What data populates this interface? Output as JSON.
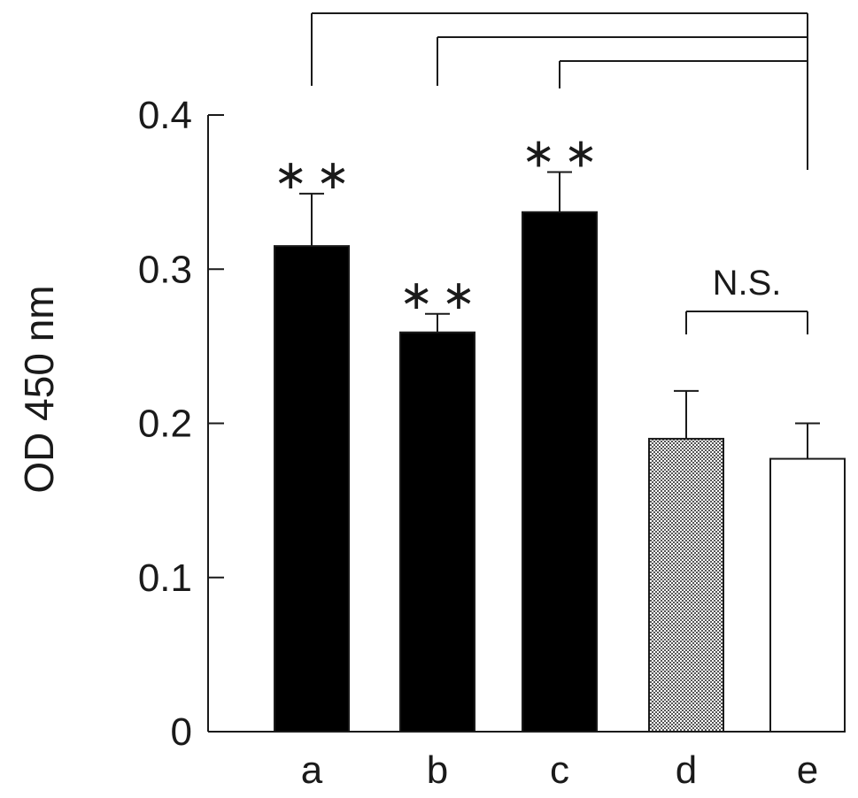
{
  "chart_data": {
    "type": "bar",
    "categories": [
      "a",
      "b",
      "c",
      "d",
      "e"
    ],
    "values": [
      0.315,
      0.259,
      0.337,
      0.19,
      0.177
    ],
    "errors": [
      0.034,
      0.012,
      0.026,
      0.031,
      0.023
    ],
    "bar_colors": [
      "#000000",
      "#000000",
      "#000000",
      "#cccccc",
      "#ffffff"
    ],
    "bar_patterns": [
      "solid",
      "solid",
      "solid",
      "checkered",
      "open"
    ],
    "title": "",
    "xlabel": "",
    "ylabel": "OD 450 nm",
    "ylim": [
      0,
      0.4
    ],
    "yticks": [
      0,
      0.1,
      0.2,
      0.3,
      0.4
    ],
    "ytick_labels": [
      "0",
      "0.1",
      "0.2",
      "0.3",
      "0.4"
    ],
    "grid": false,
    "significance_marks": [
      "**",
      "**",
      "**",
      "",
      ""
    ],
    "comparisons": [
      {
        "from": "a",
        "to": "e"
      },
      {
        "from": "b",
        "to": "e"
      },
      {
        "from": "c",
        "to": "e"
      },
      {
        "from": "d",
        "to": "e",
        "label": "N.S."
      }
    ]
  }
}
